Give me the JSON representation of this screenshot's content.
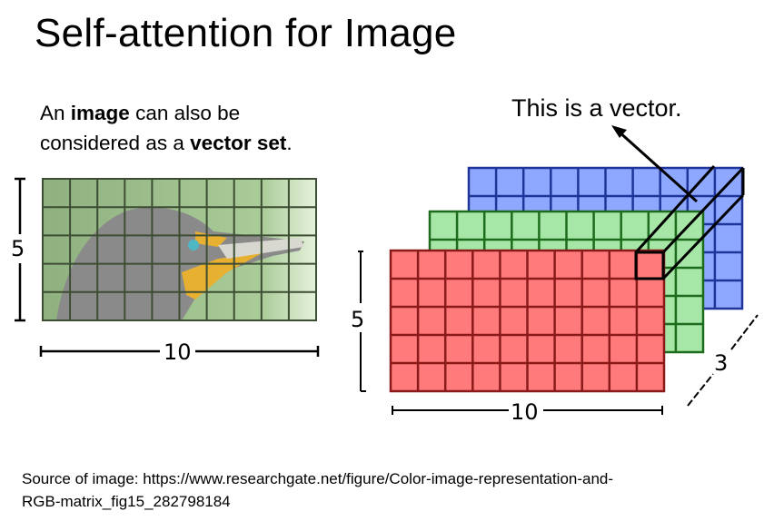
{
  "slide": {
    "title": "Self-attention for Image",
    "description": {
      "line1_pre": "An ",
      "line1_bold": "image",
      "line1_post": " can also be",
      "line2_pre": "considered as a ",
      "line2_bold": "vector set",
      "line2_post": "."
    },
    "vector_label": "This is a vector.",
    "source_line1": "Source of image: https://www.researchgate.net/figure/Color-image-representation-and-",
    "source_line2": "RGB-matrix_fig15_282798184"
  },
  "diagram": {
    "image_grid": {
      "rows": 5,
      "cols": 10,
      "height_label": "5",
      "width_label": "10"
    },
    "rgb_stack": {
      "height_label": "5",
      "width_label": "10",
      "depth_label": "3",
      "channels": [
        {
          "name": "blue",
          "fill": "#8fa8ff",
          "line": "#1f3599"
        },
        {
          "name": "green",
          "fill": "#a6e6a6",
          "line": "#1d6b1d"
        },
        {
          "name": "red",
          "fill": "#ff7b7b",
          "line": "#8a1a1a"
        }
      ]
    }
  }
}
